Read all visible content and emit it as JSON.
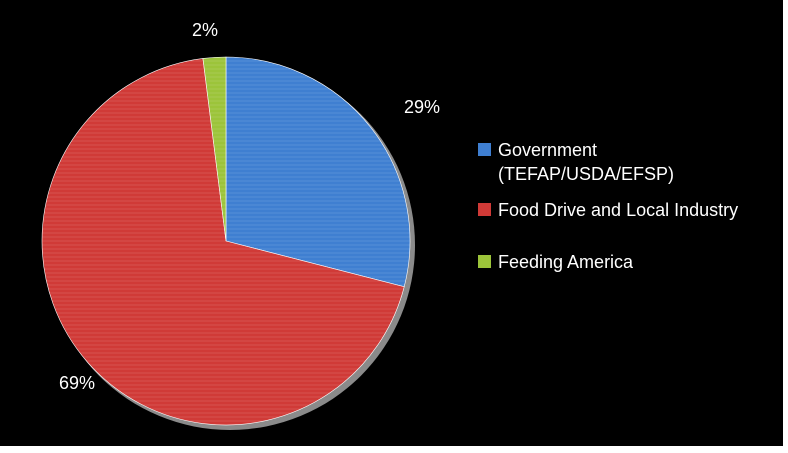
{
  "chart_data": {
    "type": "pie",
    "categories": [
      "Government (TEFAP/USDA/EFSP)",
      "Food Drive and Local Industry",
      "Feeding America"
    ],
    "values": [
      29,
      69,
      2
    ],
    "data_labels": [
      "29%",
      "69%",
      "2%"
    ],
    "colors": [
      "#3f7fd1",
      "#d03a37",
      "#9cc43a"
    ],
    "legend_placement": "right",
    "start_angle_deg": 0,
    "direction": "clockwise"
  },
  "legend": {
    "items": [
      {
        "label": "Government\n(TEFAP/USDA/EFSP)",
        "color": "#3f7fd1"
      },
      {
        "label": "Food Drive and Local Industry",
        "color": "#d03a37"
      },
      {
        "label": "Feeding America",
        "color": "#9cc43a"
      }
    ]
  },
  "labels": {
    "government": "29%",
    "food_drive": "69%",
    "feeding_america": "2%"
  }
}
